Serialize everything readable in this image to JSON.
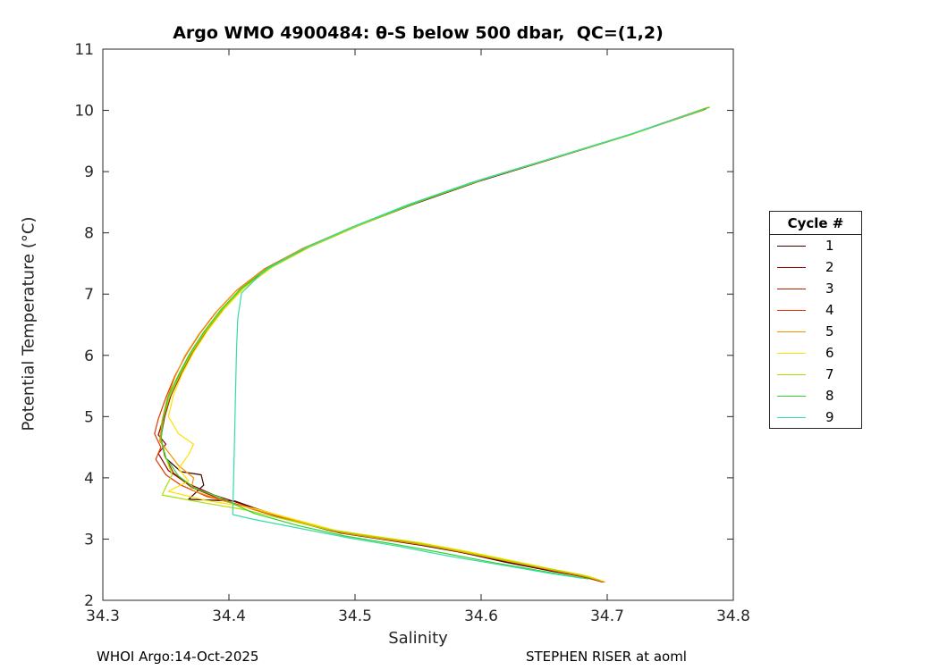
{
  "chart_data": {
    "type": "line",
    "title": "Argo WMO 4900484: θ-S below 500 dbar,  QC=(1,2)",
    "xlabel": "Salinity",
    "ylabel": "Potential Temperature (°C)",
    "xlim": [
      34.3,
      34.8
    ],
    "ylim": [
      2,
      11
    ],
    "xticks": [
      34.3,
      34.4,
      34.5,
      34.6,
      34.7,
      34.8
    ],
    "yticks": [
      2,
      3,
      4,
      5,
      6,
      7,
      8,
      9,
      10,
      11
    ],
    "grid": false,
    "legend_title": "Cycle #",
    "legend_position": "outside-right",
    "axis_color": "#262626",
    "series": [
      {
        "name": "1",
        "color": "#3c0000",
        "points": [
          [
            34.775,
            10.0
          ],
          [
            34.715,
            9.58
          ],
          [
            34.655,
            9.2
          ],
          [
            34.598,
            8.84
          ],
          [
            34.548,
            8.48
          ],
          [
            34.5,
            8.1
          ],
          [
            34.46,
            7.74
          ],
          [
            34.43,
            7.4
          ],
          [
            34.408,
            7.05
          ],
          [
            34.393,
            6.7
          ],
          [
            34.38,
            6.35
          ],
          [
            34.369,
            6.0
          ],
          [
            34.36,
            5.65
          ],
          [
            34.353,
            5.3
          ],
          [
            34.348,
            4.95
          ],
          [
            34.346,
            4.62
          ],
          [
            34.35,
            4.32
          ],
          [
            34.362,
            4.1
          ],
          [
            34.378,
            4.05
          ],
          [
            34.38,
            3.88
          ],
          [
            34.368,
            3.65
          ],
          [
            34.405,
            3.62
          ],
          [
            34.428,
            3.45
          ],
          [
            34.455,
            3.28
          ],
          [
            34.488,
            3.1
          ],
          [
            34.52,
            3.0
          ],
          [
            34.552,
            2.9
          ],
          [
            34.585,
            2.78
          ],
          [
            34.62,
            2.62
          ],
          [
            34.655,
            2.48
          ],
          [
            34.682,
            2.38
          ],
          [
            34.697,
            2.3
          ]
        ]
      },
      {
        "name": "2",
        "color": "#8e0000",
        "points": [
          [
            34.778,
            10.03
          ],
          [
            34.718,
            9.6
          ],
          [
            34.658,
            9.22
          ],
          [
            34.6,
            8.86
          ],
          [
            34.55,
            8.5
          ],
          [
            34.503,
            8.12
          ],
          [
            34.463,
            7.76
          ],
          [
            34.432,
            7.42
          ],
          [
            34.41,
            7.07
          ],
          [
            34.394,
            6.72
          ],
          [
            34.381,
            6.37
          ],
          [
            34.37,
            6.02
          ],
          [
            34.361,
            5.67
          ],
          [
            34.353,
            5.32
          ],
          [
            34.348,
            4.97
          ],
          [
            34.344,
            4.7
          ],
          [
            34.35,
            4.55
          ],
          [
            34.344,
            4.4
          ],
          [
            34.352,
            4.12
          ],
          [
            34.366,
            3.92
          ],
          [
            34.388,
            3.72
          ],
          [
            34.418,
            3.52
          ],
          [
            34.448,
            3.33
          ],
          [
            34.478,
            3.15
          ],
          [
            34.508,
            3.05
          ],
          [
            34.54,
            2.95
          ],
          [
            34.575,
            2.82
          ],
          [
            34.612,
            2.67
          ],
          [
            34.648,
            2.52
          ],
          [
            34.678,
            2.4
          ],
          [
            34.695,
            2.31
          ]
        ]
      },
      {
        "name": "3",
        "color": "#b51e00",
        "points": [
          [
            34.78,
            10.05
          ],
          [
            34.72,
            9.62
          ],
          [
            34.66,
            9.24
          ],
          [
            34.602,
            8.88
          ],
          [
            34.552,
            8.52
          ],
          [
            34.505,
            8.14
          ],
          [
            34.465,
            7.78
          ],
          [
            34.434,
            7.44
          ],
          [
            34.411,
            7.09
          ],
          [
            34.395,
            6.74
          ],
          [
            34.382,
            6.39
          ],
          [
            34.371,
            6.04
          ],
          [
            34.362,
            5.69
          ],
          [
            34.354,
            5.34
          ],
          [
            34.349,
            4.99
          ],
          [
            34.346,
            4.66
          ],
          [
            34.349,
            4.36
          ],
          [
            34.356,
            4.08
          ],
          [
            34.37,
            3.85
          ],
          [
            34.392,
            3.66
          ],
          [
            34.42,
            3.48
          ],
          [
            34.45,
            3.3
          ],
          [
            34.482,
            3.13
          ],
          [
            34.515,
            3.03
          ],
          [
            34.548,
            2.93
          ],
          [
            34.582,
            2.8
          ],
          [
            34.618,
            2.65
          ],
          [
            34.652,
            2.5
          ],
          [
            34.68,
            2.39
          ],
          [
            34.696,
            2.3
          ]
        ]
      },
      {
        "name": "4",
        "color": "#e03500",
        "points": [
          [
            34.778,
            10.02
          ],
          [
            34.716,
            9.59
          ],
          [
            34.655,
            9.21
          ],
          [
            34.597,
            8.85
          ],
          [
            34.547,
            8.49
          ],
          [
            34.5,
            8.11
          ],
          [
            34.459,
            7.75
          ],
          [
            34.428,
            7.41
          ],
          [
            34.406,
            7.06
          ],
          [
            34.39,
            6.71
          ],
          [
            34.377,
            6.36
          ],
          [
            34.366,
            6.01
          ],
          [
            34.357,
            5.66
          ],
          [
            34.35,
            5.31
          ],
          [
            34.344,
            4.96
          ],
          [
            34.341,
            4.72
          ],
          [
            34.346,
            4.5
          ],
          [
            34.342,
            4.3
          ],
          [
            34.35,
            4.05
          ],
          [
            34.362,
            3.88
          ],
          [
            34.382,
            3.7
          ],
          [
            34.41,
            3.55
          ],
          [
            34.44,
            3.38
          ],
          [
            34.47,
            3.2
          ],
          [
            34.502,
            3.07
          ],
          [
            34.535,
            2.97
          ],
          [
            34.57,
            2.85
          ],
          [
            34.606,
            2.7
          ],
          [
            34.643,
            2.55
          ],
          [
            34.675,
            2.42
          ],
          [
            34.694,
            2.32
          ]
        ]
      },
      {
        "name": "5",
        "color": "#f59000",
        "points": [
          [
            34.776,
            10.0
          ],
          [
            34.714,
            9.58
          ],
          [
            34.652,
            9.19
          ],
          [
            34.594,
            8.83
          ],
          [
            34.544,
            8.47
          ],
          [
            34.497,
            8.09
          ],
          [
            34.457,
            7.73
          ],
          [
            34.427,
            7.39
          ],
          [
            34.405,
            7.04
          ],
          [
            34.389,
            6.69
          ],
          [
            34.376,
            6.34
          ],
          [
            34.365,
            5.99
          ],
          [
            34.357,
            5.64
          ],
          [
            34.351,
            5.29
          ],
          [
            34.347,
            4.94
          ],
          [
            34.345,
            4.6
          ],
          [
            34.352,
            4.42
          ],
          [
            34.36,
            4.2
          ],
          [
            34.372,
            4.0
          ],
          [
            34.37,
            3.8
          ],
          [
            34.396,
            3.62
          ],
          [
            34.426,
            3.45
          ],
          [
            34.458,
            3.27
          ],
          [
            34.49,
            3.1
          ],
          [
            34.522,
            3.0
          ],
          [
            34.556,
            2.9
          ],
          [
            34.59,
            2.77
          ],
          [
            34.626,
            2.62
          ],
          [
            34.66,
            2.48
          ],
          [
            34.685,
            2.38
          ],
          [
            34.698,
            2.3
          ]
        ]
      },
      {
        "name": "6",
        "color": "#ffe000",
        "points": [
          [
            34.78,
            10.05
          ],
          [
            34.722,
            9.63
          ],
          [
            34.662,
            9.25
          ],
          [
            34.604,
            8.89
          ],
          [
            34.553,
            8.53
          ],
          [
            34.506,
            8.15
          ],
          [
            34.466,
            7.79
          ],
          [
            34.435,
            7.45
          ],
          [
            34.412,
            7.1
          ],
          [
            34.396,
            6.75
          ],
          [
            34.383,
            6.4
          ],
          [
            34.372,
            6.05
          ],
          [
            34.363,
            5.7
          ],
          [
            34.356,
            5.35
          ],
          [
            34.352,
            5.0
          ],
          [
            34.36,
            4.72
          ],
          [
            34.372,
            4.55
          ],
          [
            34.368,
            4.38
          ],
          [
            34.36,
            4.15
          ],
          [
            34.368,
            3.95
          ],
          [
            34.352,
            3.78
          ],
          [
            34.38,
            3.64
          ],
          [
            34.42,
            3.5
          ],
          [
            34.452,
            3.32
          ],
          [
            34.485,
            3.14
          ],
          [
            34.518,
            3.04
          ],
          [
            34.552,
            2.94
          ],
          [
            34.586,
            2.81
          ],
          [
            34.622,
            2.66
          ],
          [
            34.656,
            2.51
          ],
          [
            34.684,
            2.4
          ],
          [
            34.697,
            2.31
          ]
        ]
      },
      {
        "name": "7",
        "color": "#a8e000",
        "points": [
          [
            34.779,
            10.04
          ],
          [
            34.72,
            9.61
          ],
          [
            34.659,
            9.23
          ],
          [
            34.601,
            8.87
          ],
          [
            34.551,
            8.51
          ],
          [
            34.504,
            8.13
          ],
          [
            34.464,
            7.77
          ],
          [
            34.433,
            7.43
          ],
          [
            34.41,
            7.08
          ],
          [
            34.394,
            6.73
          ],
          [
            34.381,
            6.38
          ],
          [
            34.37,
            6.03
          ],
          [
            34.361,
            5.68
          ],
          [
            34.353,
            5.33
          ],
          [
            34.348,
            4.98
          ],
          [
            34.346,
            4.63
          ],
          [
            34.35,
            4.33
          ],
          [
            34.355,
            4.05
          ],
          [
            34.35,
            3.85
          ],
          [
            34.347,
            3.72
          ],
          [
            34.378,
            3.6
          ],
          [
            34.412,
            3.48
          ],
          [
            34.445,
            3.32
          ],
          [
            34.478,
            3.16
          ],
          [
            34.512,
            3.05
          ],
          [
            34.546,
            2.95
          ],
          [
            34.58,
            2.82
          ],
          [
            34.616,
            2.67
          ],
          [
            34.65,
            2.53
          ],
          [
            34.678,
            2.42
          ],
          [
            34.694,
            2.33
          ]
        ]
      },
      {
        "name": "8",
        "color": "#2fd32f",
        "points": [
          [
            34.781,
            10.05
          ],
          [
            34.72,
            9.62
          ],
          [
            34.658,
            9.23
          ],
          [
            34.6,
            8.87
          ],
          [
            34.55,
            8.51
          ],
          [
            34.502,
            8.13
          ],
          [
            34.462,
            7.77
          ],
          [
            34.431,
            7.43
          ],
          [
            34.409,
            7.08
          ],
          [
            34.393,
            6.73
          ],
          [
            34.38,
            6.38
          ],
          [
            34.369,
            6.03
          ],
          [
            34.36,
            5.68
          ],
          [
            34.352,
            5.33
          ],
          [
            34.348,
            4.98
          ],
          [
            34.346,
            4.63
          ],
          [
            34.35,
            4.33
          ],
          [
            34.36,
            4.03
          ],
          [
            34.373,
            3.83
          ],
          [
            34.393,
            3.68
          ],
          [
            34.42,
            3.42
          ],
          [
            34.455,
            3.22
          ],
          [
            34.492,
            3.05
          ],
          [
            34.53,
            2.92
          ],
          [
            34.568,
            2.78
          ],
          [
            34.606,
            2.63
          ],
          [
            34.642,
            2.5
          ],
          [
            34.67,
            2.4
          ],
          [
            34.685,
            2.35
          ]
        ]
      },
      {
        "name": "9",
        "color": "#35dca5",
        "points": [
          [
            34.776,
            10.01
          ],
          [
            34.714,
            9.58
          ],
          [
            34.65,
            9.18
          ],
          [
            34.592,
            8.82
          ],
          [
            34.542,
            8.46
          ],
          [
            34.496,
            8.08
          ],
          [
            34.457,
            7.72
          ],
          [
            34.428,
            7.38
          ],
          [
            34.41,
            7.02
          ],
          [
            34.407,
            6.6
          ],
          [
            34.406,
            6.1
          ],
          [
            34.405,
            5.2
          ],
          [
            34.404,
            4.2
          ],
          [
            34.403,
            3.4
          ],
          [
            34.42,
            3.32
          ],
          [
            34.455,
            3.18
          ],
          [
            34.495,
            3.02
          ],
          [
            34.535,
            2.88
          ],
          [
            34.575,
            2.72
          ],
          [
            34.615,
            2.58
          ],
          [
            34.652,
            2.45
          ],
          [
            34.68,
            2.36
          ]
        ]
      }
    ]
  },
  "footer": {
    "left": "WHOI Argo:14-Oct-2025",
    "right": "STEPHEN RISER at aoml"
  }
}
